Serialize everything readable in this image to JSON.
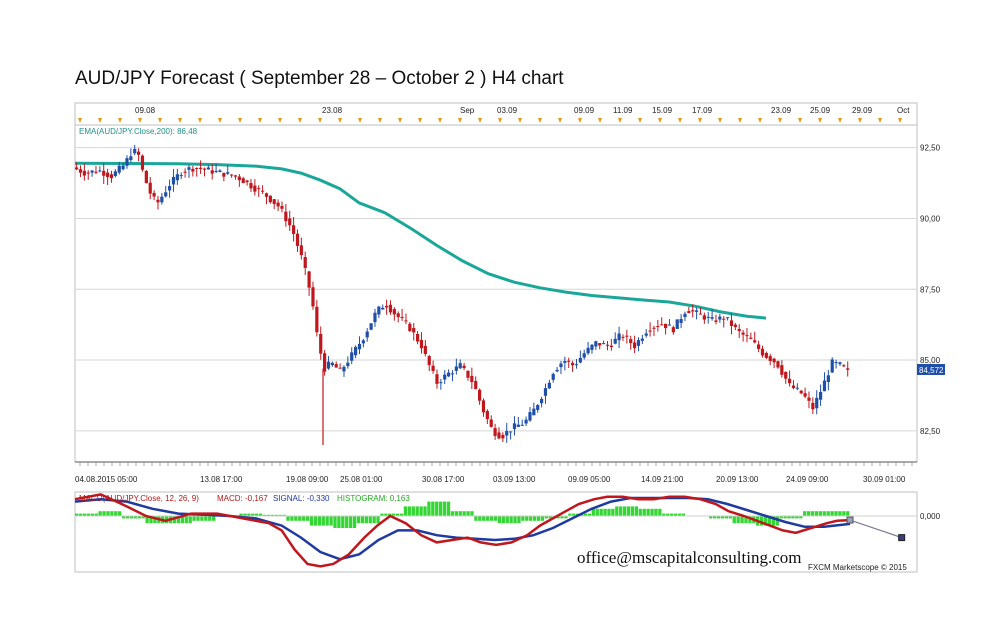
{
  "title": "AUD/JPY Forecast ( September 28 – October 2 ) H4 chart",
  "chart_data": {
    "type": "candlestick",
    "top_axis_labels": [
      "09.08",
      "23.08",
      "Sep",
      "03.09",
      "09.09",
      "11.09",
      "15.09",
      "17.09",
      "23.09",
      "25.09",
      "29.09",
      "Oct"
    ],
    "bottom_axis_labels": [
      "04.08.2015 05:00",
      "13.08 17:00",
      "19.08 09:00",
      "25.08 01:00",
      "30.08 17:00",
      "03.09 13:00",
      "09.09 05:00",
      "14.09 21:00",
      "20.09 13:00",
      "24.09 09:00",
      "30.09 01:00"
    ],
    "y_ticks": [
      "92,50",
      "90,00",
      "87,50",
      "85,00",
      "82,50"
    ],
    "ylim": [
      81.4,
      93.3
    ],
    "current_price": "84,572",
    "ema_label": "EMA(AUD/JPY.Close,200): 86,48",
    "ema_points": [
      [
        0,
        91.95
      ],
      [
        40,
        91.94
      ],
      [
        80,
        91.93
      ],
      [
        110,
        91.9
      ],
      [
        140,
        91.85
      ],
      [
        160,
        91.75
      ],
      [
        175,
        91.6
      ],
      [
        190,
        91.35
      ],
      [
        205,
        91.05
      ],
      [
        220,
        90.55
      ],
      [
        240,
        90.2
      ],
      [
        260,
        89.65
      ],
      [
        280,
        89.05
      ],
      [
        300,
        88.5
      ],
      [
        320,
        88.05
      ],
      [
        340,
        87.75
      ],
      [
        360,
        87.55
      ],
      [
        380,
        87.4
      ],
      [
        400,
        87.28
      ],
      [
        420,
        87.2
      ],
      [
        440,
        87.12
      ],
      [
        460,
        87.05
      ],
      [
        480,
        86.9
      ],
      [
        500,
        86.7
      ],
      [
        520,
        86.55
      ],
      [
        535,
        86.48
      ]
    ],
    "price_path": [
      [
        0,
        91.8
      ],
      [
        10,
        91.6
      ],
      [
        20,
        91.7
      ],
      [
        30,
        91.5
      ],
      [
        40,
        91.9
      ],
      [
        45,
        92.3
      ],
      [
        50,
        92.4
      ],
      [
        55,
        91.5
      ],
      [
        60,
        90.9
      ],
      [
        65,
        90.5
      ],
      [
        75,
        91.2
      ],
      [
        85,
        91.7
      ],
      [
        95,
        91.8
      ],
      [
        105,
        91.7
      ],
      [
        115,
        91.6
      ],
      [
        125,
        91.5
      ],
      [
        130,
        91.4
      ],
      [
        140,
        91.1
      ],
      [
        150,
        90.8
      ],
      [
        160,
        90.4
      ],
      [
        170,
        89.6
      ],
      [
        178,
        88.5
      ],
      [
        185,
        87.2
      ],
      [
        190,
        85.6
      ],
      [
        195,
        84.7
      ],
      [
        200,
        84.9
      ],
      [
        207,
        84.6
      ],
      [
        215,
        85.1
      ],
      [
        225,
        85.8
      ],
      [
        235,
        86.7
      ],
      [
        242,
        87.0
      ],
      [
        250,
        86.6
      ],
      [
        260,
        86.2
      ],
      [
        270,
        85.5
      ],
      [
        275,
        84.9
      ],
      [
        282,
        84.2
      ],
      [
        290,
        84.5
      ],
      [
        300,
        84.8
      ],
      [
        310,
        84.2
      ],
      [
        318,
        83.2
      ],
      [
        325,
        82.5
      ],
      [
        332,
        82.3
      ],
      [
        340,
        82.6
      ],
      [
        350,
        82.8
      ],
      [
        358,
        83.3
      ],
      [
        366,
        84.0
      ],
      [
        372,
        84.6
      ],
      [
        380,
        85.0
      ],
      [
        388,
        84.8
      ],
      [
        395,
        85.2
      ],
      [
        405,
        85.6
      ],
      [
        415,
        85.5
      ],
      [
        425,
        85.9
      ],
      [
        435,
        85.5
      ],
      [
        445,
        86.1
      ],
      [
        455,
        86.3
      ],
      [
        465,
        86.1
      ],
      [
        475,
        86.8
      ],
      [
        485,
        86.6
      ],
      [
        495,
        86.4
      ],
      [
        505,
        86.5
      ],
      [
        515,
        86.0
      ],
      [
        525,
        85.7
      ],
      [
        535,
        85.2
      ],
      [
        545,
        84.9
      ],
      [
        555,
        84.1
      ],
      [
        565,
        83.8
      ],
      [
        573,
        83.3
      ],
      [
        580,
        84.0
      ],
      [
        588,
        84.9
      ],
      [
        595,
        84.8
      ],
      [
        600,
        84.57
      ]
    ],
    "macd_label": "MACD(AUD/JPY.Close, 12, 26, 9)",
    "macd_value_label": "MACD: -0,167",
    "signal_label": "SIGNAL: -0,330",
    "histogram_label": "HISTOGRAM: 0,163",
    "macd_zero_label": "0,000",
    "macd_points": [
      [
        0,
        0.7
      ],
      [
        20,
        0.9
      ],
      [
        40,
        0.4
      ],
      [
        55,
        0.0
      ],
      [
        70,
        -0.2
      ],
      [
        90,
        0.1
      ],
      [
        110,
        0.1
      ],
      [
        130,
        -0.1
      ],
      [
        150,
        -0.3
      ],
      [
        160,
        -0.6
      ],
      [
        170,
        -1.4
      ],
      [
        180,
        -2.0
      ],
      [
        190,
        -2.1
      ],
      [
        200,
        -2.0
      ],
      [
        212,
        -1.6
      ],
      [
        224,
        -0.9
      ],
      [
        234,
        -0.4
      ],
      [
        244,
        0.0
      ],
      [
        256,
        -0.3
      ],
      [
        268,
        -0.8
      ],
      [
        280,
        -1.1
      ],
      [
        292,
        -1.0
      ],
      [
        304,
        -0.9
      ],
      [
        314,
        -1.1
      ],
      [
        326,
        -1.2
      ],
      [
        338,
        -1.1
      ],
      [
        350,
        -0.8
      ],
      [
        360,
        -0.4
      ],
      [
        370,
        -0.1
      ],
      [
        380,
        0.2
      ],
      [
        390,
        0.5
      ],
      [
        402,
        0.7
      ],
      [
        412,
        0.8
      ],
      [
        424,
        0.8
      ],
      [
        436,
        0.7
      ],
      [
        448,
        0.7
      ],
      [
        460,
        0.8
      ],
      [
        472,
        0.8
      ],
      [
        484,
        0.7
      ],
      [
        496,
        0.5
      ],
      [
        506,
        0.2
      ],
      [
        518,
        0.0
      ],
      [
        528,
        -0.2
      ],
      [
        538,
        -0.4
      ],
      [
        548,
        -0.6
      ],
      [
        558,
        -0.7
      ],
      [
        570,
        -0.5
      ],
      [
        582,
        -0.3
      ],
      [
        590,
        -0.2
      ],
      [
        600,
        -0.17
      ]
    ],
    "signal_points": [
      [
        0,
        0.6
      ],
      [
        20,
        0.7
      ],
      [
        40,
        0.6
      ],
      [
        60,
        0.3
      ],
      [
        80,
        0.1
      ],
      [
        100,
        0.05
      ],
      [
        120,
        0.0
      ],
      [
        140,
        -0.1
      ],
      [
        160,
        -0.4
      ],
      [
        175,
        -0.9
      ],
      [
        190,
        -1.5
      ],
      [
        205,
        -1.8
      ],
      [
        220,
        -1.6
      ],
      [
        235,
        -1.0
      ],
      [
        250,
        -0.6
      ],
      [
        265,
        -0.6
      ],
      [
        280,
        -0.8
      ],
      [
        295,
        -0.9
      ],
      [
        310,
        -0.95
      ],
      [
        325,
        -1.0
      ],
      [
        340,
        -0.95
      ],
      [
        355,
        -0.8
      ],
      [
        370,
        -0.5
      ],
      [
        385,
        -0.1
      ],
      [
        400,
        0.3
      ],
      [
        415,
        0.6
      ],
      [
        430,
        0.75
      ],
      [
        445,
        0.75
      ],
      [
        460,
        0.75
      ],
      [
        475,
        0.75
      ],
      [
        490,
        0.7
      ],
      [
        505,
        0.5
      ],
      [
        520,
        0.25
      ],
      [
        535,
        0.0
      ],
      [
        550,
        -0.25
      ],
      [
        565,
        -0.45
      ],
      [
        580,
        -0.45
      ],
      [
        600,
        -0.33
      ]
    ],
    "histogram_bars": [
      0.1,
      0.2,
      -0.1,
      -0.3,
      -0.3,
      -0.2,
      0.0,
      0.1,
      0.05,
      -0.2,
      -0.4,
      -0.5,
      -0.3,
      0.1,
      0.4,
      0.6,
      0.2,
      -0.2,
      -0.3,
      -0.2,
      -0.1,
      0.1,
      0.3,
      0.4,
      0.3,
      0.1,
      0.0,
      -0.1,
      -0.3,
      -0.4,
      -0.1,
      0.2,
      0.2
    ],
    "forecast_points": [
      [
        600,
        -0.17
      ],
      [
        640,
        -0.9
      ]
    ],
    "credit": "FXCM Marketscope © 2015",
    "watermark": "office@mscapitalconsulting.com"
  },
  "colors": {
    "ema": "#1aa79a",
    "up": "#1f4fa8",
    "down": "#c0171d",
    "macd": "#c0171d",
    "signal": "#1f3aa0",
    "histogram": "#33d633",
    "ema_label": "#1f8f88",
    "macd_label": "#b01a1a",
    "signal_label": "#1f3aa0",
    "histogram_label": "#22aa22",
    "price_tag": "#1f4fa8"
  }
}
